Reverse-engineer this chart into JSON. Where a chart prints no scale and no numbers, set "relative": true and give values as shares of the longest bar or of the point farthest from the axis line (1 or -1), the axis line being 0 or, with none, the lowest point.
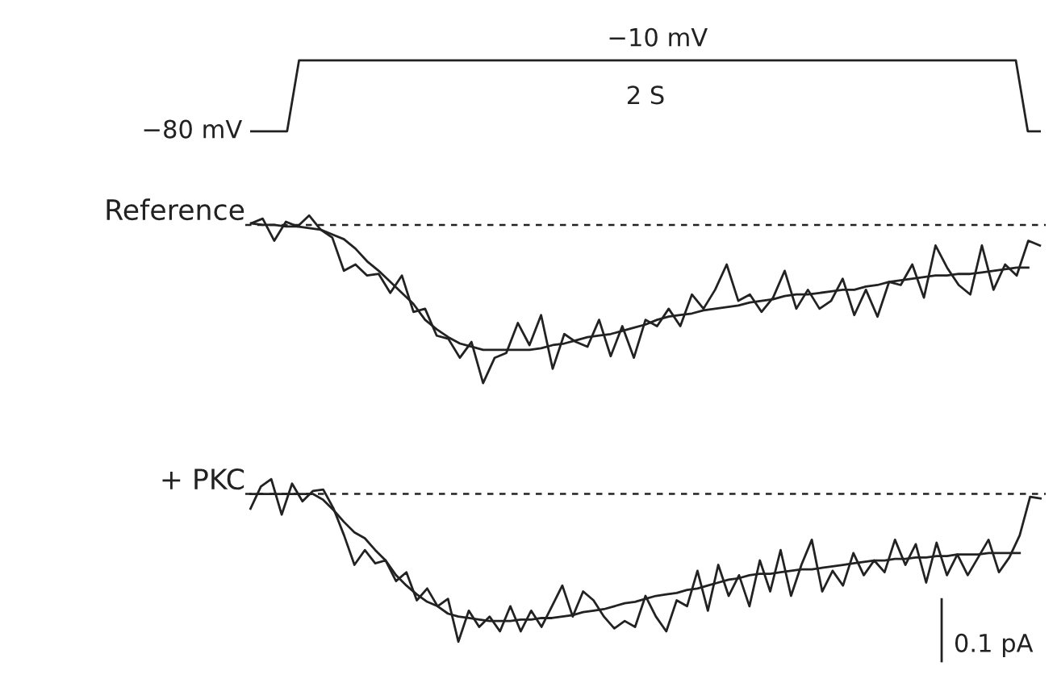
{
  "chart_data": [
    {
      "type": "line",
      "categories": [
        null,
        null,
        null,
        null,
        null,
        null,
        null,
        null,
        null,
        null,
        null,
        null,
        null,
        null,
        null,
        null,
        null,
        null,
        null,
        null,
        null,
        null,
        null,
        null,
        null,
        null,
        null,
        null,
        null,
        null,
        null,
        null,
        null,
        null,
        null,
        null,
        null,
        null,
        null,
        null,
        null,
        null,
        null,
        null,
        null,
        null,
        null,
        null,
        null,
        null,
        null,
        null,
        null,
        null,
        null,
        null,
        null,
        null,
        null,
        null,
        null,
        null,
        null,
        null,
        null,
        null,
        null
      ],
      "color": "#222222",
      "values": [
        -80,
        -80,
        -80,
        -80,
        -10,
        -10,
        -10,
        -10,
        -10,
        -10,
        -10,
        -10,
        -10,
        -10,
        -10,
        -10,
        -10,
        -10,
        -10,
        -10,
        -10,
        -10,
        -10,
        -10,
        -10,
        -10,
        -10,
        -10,
        -10,
        -10,
        -10,
        -10,
        -10,
        -10,
        -10,
        -10,
        -10,
        -10,
        -10,
        -10,
        -10,
        -10,
        -10,
        -10,
        -10,
        -10,
        -10,
        -10,
        -10,
        -10,
        -10,
        -10,
        -10,
        -10,
        -10,
        -10,
        -10,
        -10,
        -10,
        -10,
        -10,
        -10,
        -10,
        -10,
        -10,
        -80,
        -80
      ],
      "value_labels": [
        "−80 mV",
        null,
        null,
        null,
        null,
        null,
        null,
        null,
        null,
        null,
        null,
        null,
        null,
        null,
        null,
        null,
        null,
        null,
        null,
        null,
        null,
        null,
        null,
        null,
        null,
        null,
        null,
        null,
        null,
        null,
        null,
        null,
        null,
        null,
        "−10 mV",
        null,
        null,
        null,
        null,
        null,
        null,
        null,
        null,
        null,
        null,
        null,
        null,
        null,
        null,
        null,
        null,
        null,
        null,
        null,
        null,
        null,
        null,
        null,
        null,
        null,
        null,
        null,
        null,
        null,
        null,
        null,
        null
      ],
      "annotations": [
        "2 S"
      ]
    },
    {
      "type": "line",
      "relative": true,
      "ylabel": "Reference",
      "ref_lines": [
        {
          "axis": "y",
          "value": 0,
          "line_style": "dashed",
          "color": "#222222"
        }
      ],
      "categories": [
        null,
        null,
        null,
        null,
        null,
        null,
        null,
        null,
        null,
        null,
        null,
        null,
        null,
        null,
        null,
        null,
        null,
        null,
        null,
        null,
        null,
        null,
        null,
        null,
        null,
        null,
        null,
        null,
        null,
        null,
        null,
        null,
        null,
        null,
        null,
        null,
        null,
        null,
        null,
        null,
        null,
        null,
        null,
        null,
        null,
        null,
        null,
        null,
        null,
        null,
        null,
        null,
        null,
        null,
        null,
        null,
        null,
        null,
        null,
        null,
        null,
        null,
        null,
        null,
        null,
        null,
        null,
        null,
        null
      ],
      "series": [
        {
          "color": "#222222",
          "values": [
            0.01,
            0.04,
            -0.1,
            0.02,
            -0.01,
            0.06,
            -0.03,
            -0.08,
            -0.29,
            -0.25,
            -0.32,
            -0.31,
            -0.43,
            -0.32,
            -0.55,
            -0.53,
            -0.7,
            -0.72,
            -0.84,
            -0.74,
            -1,
            -0.84,
            -0.81,
            -0.62,
            -0.76,
            -0.57,
            -0.91,
            -0.69,
            -0.74,
            -0.77,
            -0.6,
            -0.83,
            -0.64,
            -0.84,
            -0.6,
            -0.64,
            -0.53,
            -0.64,
            -0.44,
            -0.53,
            -0.41,
            -0.25,
            -0.48,
            -0.44,
            -0.55,
            -0.46,
            -0.29,
            -0.53,
            -0.41,
            -0.53,
            -0.48,
            -0.34,
            -0.57,
            -0.41,
            -0.58,
            -0.36,
            -0.38,
            -0.25,
            -0.46,
            -0.13,
            -0.27,
            -0.38,
            -0.44,
            -0.13,
            -0.41,
            -0.25,
            -0.32,
            -0.1,
            -0.13
          ]
        },
        {
          "color": "#222222",
          "values": [
            0.01,
            0.0,
            0.0,
            -0.01,
            -0.01,
            -0.02,
            -0.03,
            -0.06,
            -0.09,
            -0.15,
            -0.23,
            -0.29,
            -0.36,
            -0.43,
            -0.5,
            -0.6,
            -0.66,
            -0.71,
            -0.75,
            -0.77,
            -0.79,
            -0.79,
            -0.79,
            -0.79,
            -0.79,
            -0.78,
            -0.76,
            -0.75,
            -0.73,
            -0.71,
            -0.7,
            -0.69,
            -0.67,
            -0.65,
            -0.63,
            -0.6,
            -0.58,
            -0.57,
            -0.56,
            -0.54,
            -0.53,
            -0.52,
            -0.51,
            -0.49,
            -0.48,
            -0.47,
            -0.45,
            -0.44,
            -0.44,
            -0.43,
            -0.42,
            -0.41,
            -0.41,
            -0.39,
            -0.38,
            -0.36,
            -0.35,
            -0.34,
            -0.33,
            -0.32,
            -0.32,
            -0.31,
            -0.31,
            -0.3,
            -0.29,
            -0.28,
            -0.27,
            -0.27,
            null
          ]
        }
      ]
    },
    {
      "type": "line",
      "relative": true,
      "ylabel": "+ PKC",
      "ref_lines": [
        {
          "axis": "y",
          "value": 0,
          "line_style": "dashed",
          "color": "#222222"
        }
      ],
      "annotations": [
        "0.1 pA"
      ],
      "categories": [
        null,
        null,
        null,
        null,
        null,
        null,
        null,
        null,
        null,
        null,
        null,
        null,
        null,
        null,
        null,
        null,
        null,
        null,
        null,
        null,
        null,
        null,
        null,
        null,
        null,
        null,
        null,
        null,
        null,
        null,
        null,
        null,
        null,
        null,
        null,
        null,
        null,
        null,
        null,
        null,
        null,
        null,
        null,
        null,
        null,
        null,
        null,
        null,
        null,
        null,
        null,
        null,
        null,
        null,
        null,
        null,
        null,
        null,
        null,
        null,
        null,
        null,
        null,
        null,
        null,
        null,
        null,
        null,
        null,
        null,
        null,
        null,
        null,
        null,
        null,
        null,
        null
      ],
      "series": [
        {
          "color": "#222222",
          "values": [
            -0.1,
            0.05,
            0.1,
            -0.14,
            0.07,
            -0.05,
            0.02,
            0.03,
            -0.1,
            -0.28,
            -0.48,
            -0.38,
            -0.47,
            -0.45,
            -0.59,
            -0.53,
            -0.72,
            -0.64,
            -0.76,
            -0.71,
            -1,
            -0.79,
            -0.9,
            -0.83,
            -0.93,
            -0.76,
            -0.93,
            -0.79,
            -0.9,
            -0.76,
            -0.62,
            -0.83,
            -0.66,
            -0.72,
            -0.83,
            -0.91,
            -0.86,
            -0.9,
            -0.69,
            -0.83,
            -0.93,
            -0.72,
            -0.76,
            -0.52,
            -0.79,
            -0.48,
            -0.69,
            -0.55,
            -0.76,
            -0.45,
            -0.66,
            -0.38,
            -0.69,
            -0.48,
            -0.31,
            -0.66,
            -0.52,
            -0.62,
            -0.4,
            -0.55,
            -0.45,
            -0.53,
            -0.31,
            -0.48,
            -0.34,
            -0.6,
            -0.33,
            -0.55,
            -0.41,
            -0.55,
            -0.43,
            -0.31,
            -0.53,
            -0.43,
            -0.28,
            -0.02,
            -0.03
          ]
        },
        {
          "color": "#222222",
          "values": [
            0,
            0,
            0,
            0,
            0,
            0,
            0,
            -0.04,
            -0.11,
            -0.19,
            -0.26,
            -0.3,
            -0.38,
            -0.45,
            -0.55,
            -0.62,
            -0.68,
            -0.73,
            -0.76,
            -0.81,
            -0.83,
            -0.84,
            -0.85,
            -0.86,
            -0.86,
            -0.86,
            -0.85,
            -0.85,
            -0.84,
            -0.84,
            -0.83,
            -0.82,
            -0.8,
            -0.79,
            -0.78,
            -0.76,
            -0.74,
            -0.73,
            -0.71,
            -0.69,
            -0.68,
            -0.67,
            -0.65,
            -0.64,
            -0.62,
            -0.6,
            -0.58,
            -0.57,
            -0.55,
            -0.54,
            -0.54,
            -0.53,
            -0.52,
            -0.51,
            -0.51,
            -0.5,
            -0.49,
            -0.48,
            -0.47,
            -0.46,
            -0.45,
            -0.45,
            -0.44,
            -0.44,
            -0.43,
            -0.43,
            -0.42,
            -0.42,
            -0.41,
            -0.41,
            -0.41,
            -0.4,
            -0.4,
            -0.4,
            -0.4,
            null,
            null
          ]
        }
      ]
    }
  ]
}
